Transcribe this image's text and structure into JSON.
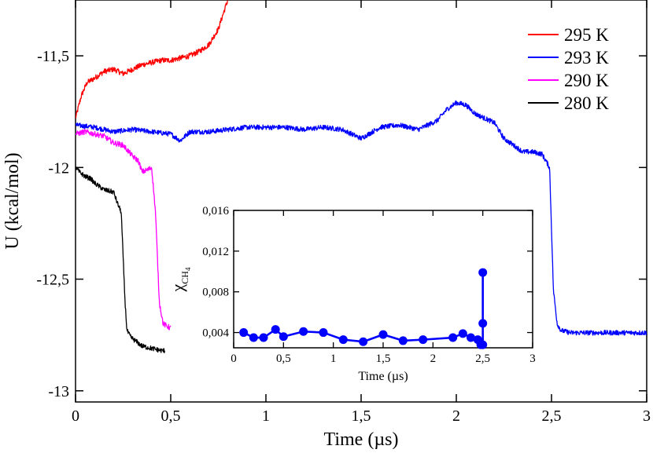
{
  "chart_data": [
    {
      "type": "line",
      "xlabel": "Time (µs)",
      "ylabel": "U (kcal/mol)",
      "xlim": [
        0,
        3
      ],
      "ylim": [
        -13.05,
        -11.25
      ],
      "xticks": [
        {
          "value": 0,
          "label": "0"
        },
        {
          "value": 0.5,
          "label": "0,5"
        },
        {
          "value": 1,
          "label": "1"
        },
        {
          "value": 1.5,
          "label": "1,5"
        },
        {
          "value": 2,
          "label": "2"
        },
        {
          "value": 2.5,
          "label": "2,5"
        },
        {
          "value": 3,
          "label": "3"
        }
      ],
      "yticks": [
        {
          "value": -11.5,
          "label": "-11,5"
        },
        {
          "value": -12,
          "label": "-12"
        },
        {
          "value": -12.5,
          "label": "-12,5"
        },
        {
          "value": -13,
          "label": "-13"
        }
      ],
      "legend_position": "top-right",
      "series": [
        {
          "name": "295 K",
          "color": "#ff0000",
          "noise": 0.012,
          "x": [
            0,
            0.03,
            0.06,
            0.1,
            0.15,
            0.2,
            0.25,
            0.3,
            0.35,
            0.4,
            0.45,
            0.5,
            0.55,
            0.6,
            0.65,
            0.7,
            0.75,
            0.78,
            0.8
          ],
          "y": [
            -11.78,
            -11.68,
            -11.62,
            -11.6,
            -11.57,
            -11.56,
            -11.58,
            -11.56,
            -11.54,
            -11.53,
            -11.52,
            -11.52,
            -11.51,
            -11.5,
            -11.48,
            -11.45,
            -11.38,
            -11.3,
            -11.25
          ]
        },
        {
          "name": "293 K",
          "color": "#0000ff",
          "noise": 0.011,
          "x": [
            0,
            0.1,
            0.2,
            0.3,
            0.4,
            0.5,
            0.55,
            0.6,
            0.7,
            0.8,
            0.9,
            1.0,
            1.1,
            1.2,
            1.3,
            1.4,
            1.5,
            1.6,
            1.7,
            1.8,
            1.9,
            1.95,
            2.0,
            2.05,
            2.1,
            2.2,
            2.25,
            2.3,
            2.35,
            2.4,
            2.45,
            2.49,
            2.51,
            2.53,
            2.55,
            2.6,
            2.7,
            2.8,
            2.9,
            3.0
          ],
          "y": [
            -11.81,
            -11.82,
            -11.84,
            -11.83,
            -11.84,
            -11.85,
            -11.88,
            -11.84,
            -11.84,
            -11.83,
            -11.82,
            -11.82,
            -11.82,
            -11.83,
            -11.82,
            -11.83,
            -11.87,
            -11.82,
            -11.81,
            -11.83,
            -11.79,
            -11.74,
            -11.71,
            -11.72,
            -11.76,
            -11.8,
            -11.87,
            -11.9,
            -11.93,
            -11.93,
            -11.94,
            -12.0,
            -12.55,
            -12.7,
            -12.73,
            -12.74,
            -12.74,
            -12.74,
            -12.74,
            -12.74
          ]
        },
        {
          "name": "290 K",
          "color": "#ff00ff",
          "noise": 0.012,
          "x": [
            0,
            0.05,
            0.1,
            0.15,
            0.2,
            0.25,
            0.28,
            0.3,
            0.33,
            0.35,
            0.38,
            0.4,
            0.4,
            0.42,
            0.43,
            0.44,
            0.46,
            0.5
          ],
          "y": [
            -11.85,
            -11.84,
            -11.85,
            -11.86,
            -11.89,
            -11.9,
            -11.93,
            -11.95,
            -11.97,
            -12.02,
            -12.01,
            -12.0,
            -12.0,
            -12.2,
            -12.4,
            -12.6,
            -12.7,
            -12.72
          ]
        },
        {
          "name": "280 K",
          "color": "#000000",
          "noise": 0.011,
          "x": [
            0,
            0.02,
            0.05,
            0.08,
            0.1,
            0.15,
            0.2,
            0.22,
            0.24,
            0.25,
            0.26,
            0.27,
            0.29,
            0.32,
            0.35,
            0.4,
            0.45,
            0.47
          ],
          "y": [
            -12.0,
            -12.02,
            -12.04,
            -12.05,
            -12.07,
            -12.1,
            -12.11,
            -12.16,
            -12.2,
            -12.4,
            -12.6,
            -12.73,
            -12.76,
            -12.78,
            -12.8,
            -12.81,
            -12.82,
            -12.82
          ]
        }
      ]
    },
    {
      "type": "line",
      "xlabel": "Time (µs)",
      "ylabel_symbol": "χ",
      "ylabel_subscript": "CH",
      "ylabel_subscript_2": "4",
      "xlim": [
        0,
        3
      ],
      "ylim": [
        0.0025,
        0.016
      ],
      "xticks": [
        {
          "value": 0,
          "label": "0"
        },
        {
          "value": 0.5,
          "label": "0,5"
        },
        {
          "value": 1,
          "label": "1"
        },
        {
          "value": 1.5,
          "label": "1,5"
        },
        {
          "value": 2,
          "label": "2"
        },
        {
          "value": 2.5,
          "label": "2,5"
        },
        {
          "value": 3,
          "label": "3"
        }
      ],
      "yticks": [
        {
          "value": 0.004,
          "label": "0,004"
        },
        {
          "value": 0.008,
          "label": "0,008"
        },
        {
          "value": 0.012,
          "label": "0,012"
        },
        {
          "value": 0.016,
          "label": "0,016"
        }
      ],
      "series": [
        {
          "name": "x_CH4",
          "color": "#0000ff",
          "x": [
            0.1,
            0.2,
            0.3,
            0.42,
            0.5,
            0.7,
            0.9,
            1.1,
            1.3,
            1.5,
            1.7,
            1.9,
            2.2,
            2.3,
            2.38,
            2.45,
            2.48,
            2.5,
            2.5,
            2.5
          ],
          "y": [
            0.004,
            0.0035,
            0.0035,
            0.0043,
            0.0036,
            0.0041,
            0.004,
            0.0033,
            0.0031,
            0.0038,
            0.0032,
            0.0033,
            0.0035,
            0.0039,
            0.0035,
            0.0033,
            0.0028,
            0.0028,
            0.0049,
            0.0099
          ]
        }
      ]
    }
  ]
}
